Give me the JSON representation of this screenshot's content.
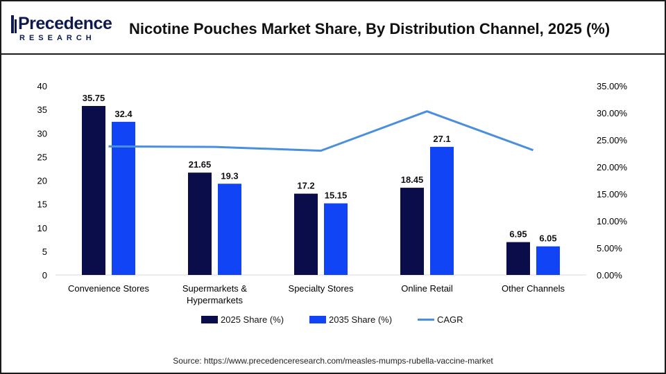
{
  "header": {
    "logo_word": "Precedence",
    "logo_sub": "RESEARCH",
    "title": "Nicotine Pouches Market Share, By Distribution Channel, 2025 (%)"
  },
  "colors": {
    "series_2025": "#0b0c4a",
    "series_2035": "#1144f5",
    "cagr_line": "#4a8fdd",
    "logo": "#0e1a4f"
  },
  "chart_data": {
    "type": "bar",
    "categories": [
      [
        "Convenience Stores"
      ],
      [
        "Supermarkets &",
        "Hypermarkets"
      ],
      [
        "Specialty Stores"
      ],
      [
        "Online Retail"
      ],
      [
        "Other Channels"
      ]
    ],
    "series": [
      {
        "name": "2025 Share (%)",
        "values": [
          35.75,
          21.65,
          17.2,
          18.45,
          6.95
        ],
        "labels": [
          "35.75",
          "21.65",
          "17.2",
          "18.45",
          "6.95"
        ]
      },
      {
        "name": "2035 Share (%)",
        "values": [
          32.4,
          19.3,
          15.15,
          27.1,
          6.05
        ],
        "labels": [
          "32.4",
          "19.3",
          "15.15",
          "27.1",
          "6.05"
        ]
      }
    ],
    "line_series": {
      "name": "CAGR",
      "values": [
        23.8,
        23.7,
        23.0,
        30.3,
        23.1
      ],
      "axis": "right"
    },
    "y_left": {
      "min": 0,
      "max": 40,
      "ticks": [
        "0",
        "5",
        "10",
        "15",
        "20",
        "25",
        "30",
        "35",
        "40"
      ]
    },
    "y_right": {
      "min": 0,
      "max": 35,
      "ticks": [
        "0.00%",
        "5.00%",
        "10.00%",
        "15.00%",
        "20.00%",
        "25.00%",
        "30.00%",
        "35.00%"
      ]
    },
    "legend_position": "bottom",
    "grid": false
  },
  "legend": {
    "items": [
      "2025 Share (%)",
      "2035 Share (%)",
      "CAGR"
    ]
  },
  "source": "Source: https://www.precedenceresearch.com/measles-mumps-rubella-vaccine-market"
}
